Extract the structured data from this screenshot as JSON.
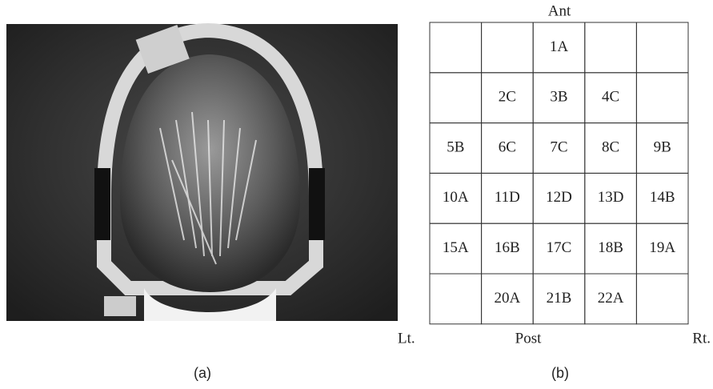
{
  "panel_a": {
    "caption": "(a)"
  },
  "panel_b": {
    "caption": "(b)",
    "top": "Ant",
    "bottom": "Post",
    "left": "Lt.",
    "right": "Rt.",
    "grid": [
      [
        null,
        null,
        "1A",
        null,
        null
      ],
      [
        null,
        "2C",
        "3B",
        "4C",
        null
      ],
      [
        "5B",
        "6C",
        "7C",
        "8C",
        "9B"
      ],
      [
        "10A",
        "11D",
        "12D",
        "13D",
        "14B"
      ],
      [
        "15A",
        "16B",
        "17C",
        "18B",
        "19A"
      ],
      [
        null,
        "20A",
        "21B",
        "22A",
        null
      ]
    ]
  }
}
